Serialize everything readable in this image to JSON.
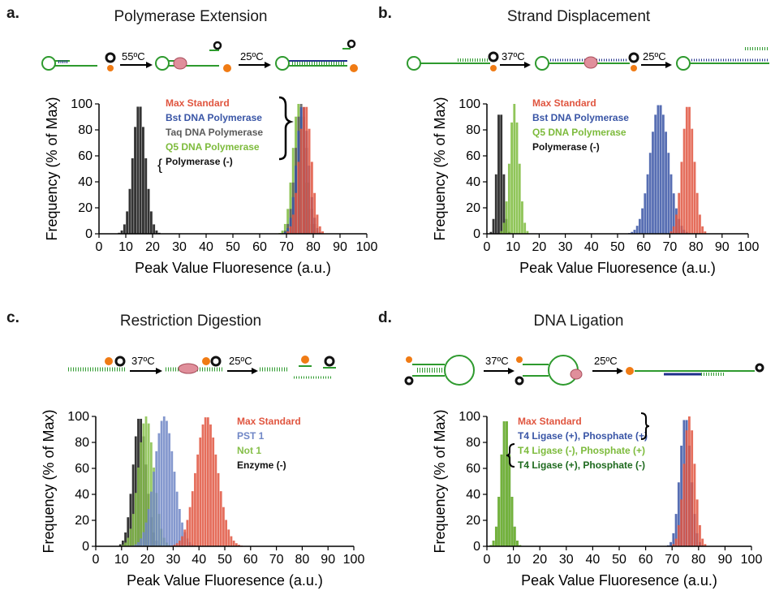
{
  "colors": {
    "max_standard": "#e0553f",
    "bst": "#3955a6",
    "taq": "#5a5a5a",
    "q5": "#7dbb3c",
    "neg": "#111111",
    "pst1": "#6f86c6",
    "not1": "#86bf4a",
    "t4_pos_phos_pos": "#3955a6",
    "t4_neg_phos_pos": "#7dbb3c",
    "t4_pos_phos_neg": "#1e6a1e",
    "dna_green": "#2e9a2e",
    "dna_blue": "#1f2f8a",
    "fluor_orange": "#f07b14",
    "quencher_black": "#111111",
    "enzyme_pink": "#e08f9b"
  },
  "panels": [
    {
      "letter": "a.",
      "title": "Polymerase Extension",
      "schematic": {
        "step1_temp": "55ºC",
        "step2_temp": "25ºC"
      },
      "legend_bracket": "Polymerase (-)",
      "chart_data": {
        "type": "bar",
        "xlabel": "Peak Value Fluoresence (a.u.)",
        "ylabel": "Frequency (% of Max)",
        "xlim": [
          0,
          100
        ],
        "ylim": [
          0,
          100
        ],
        "xticks": [
          0,
          10,
          20,
          30,
          40,
          50,
          60,
          70,
          80,
          90,
          100
        ],
        "yticks": [
          0,
          20,
          40,
          60,
          80,
          100
        ],
        "series": [
          {
            "name": "Max Standard",
            "color_key": "max_standard",
            "center": 77,
            "sigma": 2.3
          },
          {
            "name": "Bst DNA Polymerase",
            "color_key": "bst",
            "center": 76,
            "sigma": 2.2
          },
          {
            "name": "Taq DNA Polymerase",
            "color_key": "taq",
            "center": 75.5,
            "sigma": 2.2
          },
          {
            "name": "Q5 DNA Polymerase",
            "color_key": "q5",
            "center": 74.5,
            "sigma": 2.2
          },
          {
            "name": "Polymerase (-)",
            "color_key": "neg",
            "center": 15,
            "sigma": 2.4
          }
        ]
      }
    },
    {
      "letter": "b.",
      "title": "Strand Displacement",
      "schematic": {
        "step1_temp": "37ºC",
        "step2_temp": "25ºC"
      },
      "chart_data": {
        "type": "bar",
        "xlabel": "Peak Value Fluoresence (a.u.)",
        "ylabel": "Frequency (% of Max)",
        "xlim": [
          0,
          100
        ],
        "ylim": [
          0,
          100
        ],
        "xticks": [
          0,
          10,
          20,
          30,
          40,
          50,
          60,
          70,
          80,
          90,
          100
        ],
        "yticks": [
          0,
          20,
          40,
          60,
          80,
          100
        ],
        "series": [
          {
            "name": "Max Standard",
            "color_key": "max_standard",
            "center": 77,
            "sigma": 2.3
          },
          {
            "name": "Bst DNA Polymerase",
            "color_key": "bst",
            "center": 66,
            "sigma": 3.6
          },
          {
            "name": "Q5 DNA Polymerase",
            "color_key": "q5",
            "center": 10.5,
            "sigma": 1.8
          },
          {
            "name": "Polymerase (-)",
            "color_key": "neg",
            "center": 5,
            "sigma": 1.2
          }
        ]
      }
    },
    {
      "letter": "c.",
      "title": "Restriction Digestion",
      "schematic": {
        "step1_temp": "37ºC",
        "step2_temp": "25ºC"
      },
      "chart_data": {
        "type": "bar",
        "xlabel": "Peak Value Fluoresence (a.u.)",
        "ylabel": "Frequency (% of Max)",
        "xlim": [
          0,
          100
        ],
        "ylim": [
          0,
          100
        ],
        "xticks": [
          0,
          10,
          20,
          30,
          40,
          50,
          60,
          70,
          80,
          90,
          100
        ],
        "yticks": [
          0,
          20,
          40,
          60,
          80,
          100
        ],
        "series": [
          {
            "name": "Max Standard",
            "color_key": "max_standard",
            "center": 43,
            "sigma": 4.2
          },
          {
            "name": "PST 1",
            "color_key": "pst1",
            "center": 26.5,
            "sigma": 3.8
          },
          {
            "name": "Not 1",
            "color_key": "not1",
            "center": 19.5,
            "sigma": 3.0
          },
          {
            "name": "Enzyme (-)",
            "color_key": "neg",
            "center": 17,
            "sigma": 2.6
          }
        ]
      }
    },
    {
      "letter": "d.",
      "title": "DNA Ligation",
      "schematic": {
        "step1_temp": "37ºC",
        "step2_temp": "25ºC"
      },
      "chart_data": {
        "type": "bar",
        "xlabel": "Peak Value Fluoresence (a.u.)",
        "ylabel": "Frequency (% of Max)",
        "xlim": [
          0,
          100
        ],
        "ylim": [
          0,
          100
        ],
        "xticks": [
          0,
          10,
          20,
          30,
          40,
          50,
          60,
          70,
          80,
          90,
          100
        ],
        "yticks": [
          0,
          20,
          40,
          60,
          80,
          100
        ],
        "series": [
          {
            "name": "Max Standard",
            "color_key": "max_standard",
            "center": 76.5,
            "sigma": 2.1
          },
          {
            "name": "T4 Ligase (+), Phosphate (+)",
            "color_key": "t4_pos_phos_pos",
            "center": 75,
            "sigma": 2.1
          },
          {
            "name": "T4 Ligase (-), Phosphate (+)",
            "color_key": "t4_neg_phos_pos",
            "center": 7,
            "sigma": 1.8
          },
          {
            "name": "T4 Ligase (+), Phosphate (-)",
            "color_key": "t4_pos_phos_neg",
            "center": 7,
            "sigma": 1.8
          }
        ]
      }
    }
  ]
}
